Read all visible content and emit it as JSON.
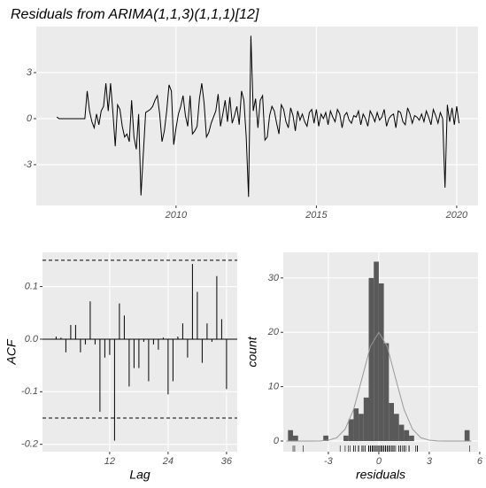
{
  "chart_data": [
    {
      "type": "line",
      "title": "Residuals from ARIMA(1,1,3)(1,1,1)[12]",
      "start": 2005.75,
      "frequency": 12,
      "color": "#000000",
      "values": [
        0.1,
        0,
        0,
        0,
        0,
        0,
        0,
        0,
        0,
        0,
        0,
        0,
        0,
        1.8,
        0.5,
        -0.2,
        -0.6,
        0.3,
        -0.4,
        0.5,
        0.8,
        2.3,
        0.5,
        2.3,
        0.4,
        -1.8,
        0.9,
        0.6,
        -0.5,
        -1.2,
        -1.0,
        -1.5,
        1.2,
        -1.2,
        -2.0,
        0.3,
        -5.0,
        -2.3,
        0.4,
        0.5,
        0.6,
        0.8,
        1.2,
        1.5,
        0.3,
        -1.5,
        -0.8,
        0.5,
        2.2,
        1.8,
        -1.7,
        -0.6,
        0.3,
        0.8,
        1.5,
        0.2,
        -0.5,
        1.5,
        -1.0,
        -0.8,
        -0.5,
        1.3,
        2.3,
        1.0,
        -1.2,
        -0.9,
        -0.3,
        0.1,
        0.5,
        1.6,
        -0.5,
        0.3,
        1.2,
        -0.2,
        1.4,
        -0.3,
        0.2,
        0.8,
        -0.4,
        1.8,
        1.2,
        -1.2,
        -5.1,
        5.4,
        0.5,
        1.3,
        -0.6,
        1.2,
        1.5,
        -1.4,
        -1.2,
        0.2,
        0.8,
        0.5,
        -0.3,
        -1.0,
        0.9,
        0.6,
        -0.2,
        -0.6,
        0.7,
        0.2,
        -0.8,
        0.5,
        -0.1,
        0.3,
        -0.2,
        -0.5,
        0.4,
        0.6,
        -0.3,
        0.6,
        -0.5,
        0.3,
        0,
        0.4,
        -0.4,
        0.5,
        0.1,
        -0.2,
        0.6,
        0.3,
        -0.6,
        0.2,
        0.4,
        -0.1,
        -0.3,
        0.2,
        0.1,
        0.5,
        -0.4,
        0.3,
        0,
        -0.5,
        0.5,
        0.2,
        -0.2,
        0.4,
        -0.1,
        0.1,
        0.6,
        -0.5,
        0,
        0.2,
        0.3,
        -0.6,
        0.5,
        0.4,
        -0.2,
        -0.4,
        0.7,
        0.3,
        -0.3,
        0.2,
        0.1,
        -0.1,
        0.3,
        -0.2,
        0.5,
        0.1,
        -0.4,
        0.6,
        0.2,
        -0.3,
        0.4,
        0,
        -4.5,
        0.9,
        -0.2,
        0.7,
        -0.4,
        0.8,
        -0.3
      ],
      "xlim": [
        2005.02,
        2020.76
      ],
      "xticks": [
        2010,
        2015,
        2020
      ],
      "ylim": [
        -5.66,
        6.0
      ],
      "yticks": [
        -3,
        0,
        3
      ],
      "grid": true
    },
    {
      "type": "acf",
      "xlabel": "Lag",
      "ylabel": "ACF",
      "color": "#000000",
      "x": [
        1,
        2,
        3,
        4,
        5,
        6,
        7,
        8,
        9,
        10,
        11,
        12,
        13,
        14,
        15,
        16,
        17,
        18,
        19,
        20,
        21,
        22,
        23,
        24,
        25,
        26,
        27,
        28,
        29,
        30,
        31,
        32,
        33,
        34,
        35,
        36
      ],
      "values": [
        0.005,
        0.003,
        -0.025,
        0.027,
        0.027,
        -0.025,
        -0.01,
        0.072,
        -0.01,
        -0.138,
        -0.035,
        -0.03,
        -0.193,
        0.068,
        0.045,
        -0.09,
        -0.055,
        -0.055,
        -0.005,
        -0.08,
        -0.01,
        -0.02,
        0.003,
        -0.105,
        -0.08,
        0.005,
        0.03,
        -0.035,
        0.143,
        0.09,
        -0.045,
        0.03,
        -0.005,
        0.12,
        0.038,
        -0.095
      ],
      "significance_bounds": [
        -0.15,
        0.15
      ],
      "xlim": [
        -1.8,
        38.2
      ],
      "xticks": [
        12,
        24,
        36
      ],
      "ylim": [
        -0.214,
        0.165
      ],
      "yticks": [
        -0.2,
        -0.1,
        {
          "value": 0,
          "label": "0.0"
        },
        0.1
      ],
      "grid": true
    },
    {
      "type": "histogram",
      "xlabel": "residuals",
      "ylabel": "count",
      "color": "#595959",
      "curve_color": "#999999",
      "bins": [
        -5.4,
        -5.1,
        -4.8,
        -4.5,
        -4.2,
        -3.9,
        -3.6,
        -3.3,
        -3.0,
        -2.7,
        -2.4,
        -2.1,
        -1.8,
        -1.5,
        -1.2,
        -0.9,
        -0.6,
        -0.3,
        0,
        0.3,
        0.6,
        0.9,
        1.2,
        1.5,
        1.8,
        2.1,
        2.4,
        2.7,
        3.0,
        3.3,
        3.6,
        3.9,
        4.2,
        4.5,
        4.8,
        5.1,
        5.4
      ],
      "values": [
        2,
        1,
        0,
        0,
        0,
        0,
        0,
        1,
        0,
        0,
        0,
        1,
        4,
        6,
        5,
        8,
        30,
        33,
        29,
        18,
        7,
        5,
        3,
        2,
        1,
        0,
        0,
        0,
        0,
        0,
        0,
        0,
        0,
        0,
        0,
        2
      ],
      "curve": {
        "x": [
          -5.5,
          -5,
          -4.5,
          -4,
          -3.5,
          -3,
          -2.5,
          -2,
          -1.5,
          -1,
          -0.5,
          0,
          0.5,
          1,
          1.5,
          2,
          2.5,
          3,
          3.5,
          4,
          4.5,
          5,
          5.5
        ],
        "values": [
          0,
          0,
          0,
          0,
          0.02,
          0.15,
          0.6,
          2.2,
          5.8,
          11.5,
          17.4,
          20,
          17.4,
          11.5,
          5.8,
          2.2,
          0.6,
          0.15,
          0.02,
          0,
          0,
          0,
          0
        ]
      },
      "rug": true,
      "xlim": [
        -5.68,
        5.9
      ],
      "xticks": [
        -3,
        0,
        3,
        6
      ],
      "ylim": [
        -1.96,
        34.7
      ],
      "yticks": [
        0,
        10,
        20,
        30
      ],
      "grid": true
    }
  ]
}
